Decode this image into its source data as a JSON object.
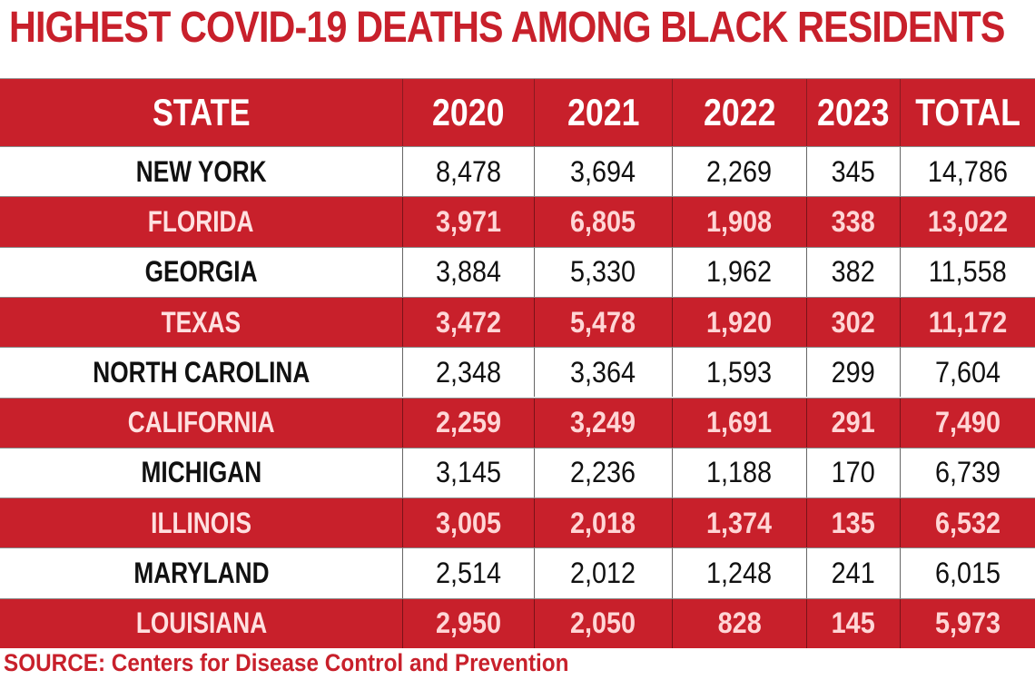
{
  "title": "HIGHEST COVID-19 DEATHS AMONG BLACK RESIDENTS",
  "source": "SOURCE: Centers for Disease Control and Prevention",
  "colors": {
    "accent": "#c8202b",
    "row_alt": "#ffffff",
    "header_text": "#ffffff"
  },
  "chart_data": {
    "type": "table",
    "title": "HIGHEST COVID-19 DEATHS AMONG BLACK RESIDENTS",
    "columns": [
      "STATE",
      "2020",
      "2021",
      "2022",
      "2023",
      "TOTAL"
    ],
    "rows": [
      [
        "NEW YORK",
        "8,478",
        "3,694",
        "2,269",
        "345",
        "14,786"
      ],
      [
        "FLORIDA",
        "3,971",
        "6,805",
        "1,908",
        "338",
        "13,022"
      ],
      [
        "GEORGIA",
        "3,884",
        "5,330",
        "1,962",
        "382",
        "11,558"
      ],
      [
        "TEXAS",
        "3,472",
        "5,478",
        "1,920",
        "302",
        "11,172"
      ],
      [
        "NORTH CAROLINA",
        "2,348",
        "3,364",
        "1,593",
        "299",
        "7,604"
      ],
      [
        "CALIFORNIA",
        "2,259",
        "3,249",
        "1,691",
        "291",
        "7,490"
      ],
      [
        "MICHIGAN",
        "3,145",
        "2,236",
        "1,188",
        "170",
        "6,739"
      ],
      [
        "ILLINOIS",
        "3,005",
        "2,018",
        "1,374",
        "135",
        "6,532"
      ],
      [
        "MARYLAND",
        "2,514",
        "2,012",
        "1,248",
        "241",
        "6,015"
      ],
      [
        "LOUISIANA",
        "2,950",
        "2,050",
        "828",
        "145",
        "5,973"
      ]
    ],
    "source": "SOURCE: Centers for Disease Control and Prevention"
  }
}
